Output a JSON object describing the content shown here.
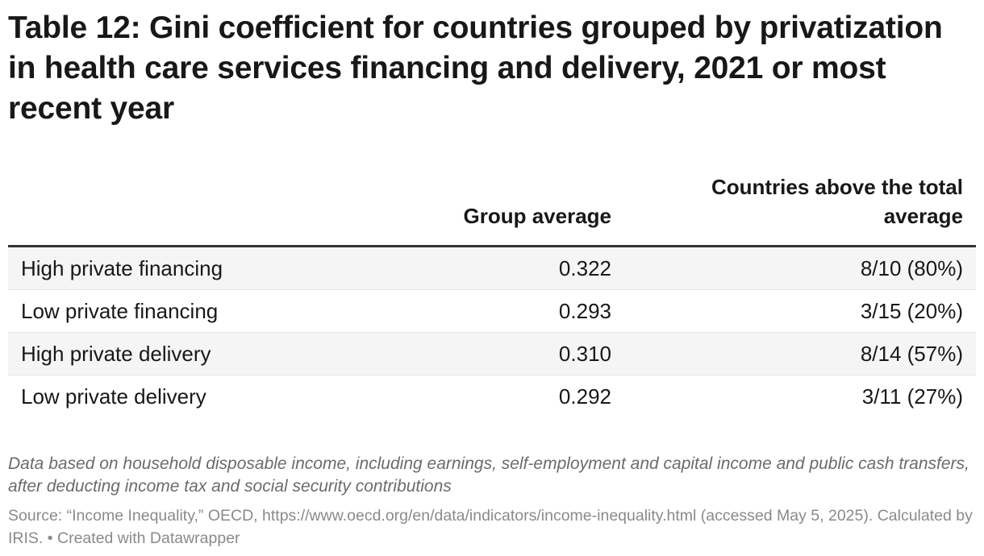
{
  "title": "Table 12: Gini coefficient for countries grouped by privatization in health care services financing and delivery, 2021 or most recent year",
  "chart_data": {
    "type": "table",
    "title": "Table 12: Gini coefficient for countries grouped by privatization in health care services financing and delivery, 2021 or most recent year",
    "columns": [
      "",
      "Group average",
      "Countries above the total average"
    ],
    "rows": [
      {
        "label": "High private financing",
        "group_average": "0.322",
        "countries_above": "8/10 (80%)"
      },
      {
        "label": "Low private financing",
        "group_average": "0.293",
        "countries_above": "3/15 (20%)"
      },
      {
        "label": "High private delivery",
        "group_average": "0.310",
        "countries_above": "8/14 (57%)"
      },
      {
        "label": "Low private delivery",
        "group_average": "0.292",
        "countries_above": "3/11 (27%)"
      }
    ]
  },
  "notes": "Data based on household disposable income, including earnings, self-employment and capital income and public cash transfers, after deducting income tax and social security contributions",
  "source": "Source: “Income Inequality,” OECD, https://www.oecd.org/en/data/indicators/income-inequality.html (accessed May 5, 2025). Calculated by IRIS. • Created with Datawrapper",
  "colors": {
    "text": "#181818",
    "header_rule": "#333333",
    "row_alt_bg": "#f5f5f5",
    "notes": "#6b6b6b",
    "source": "#8a8a8a"
  }
}
